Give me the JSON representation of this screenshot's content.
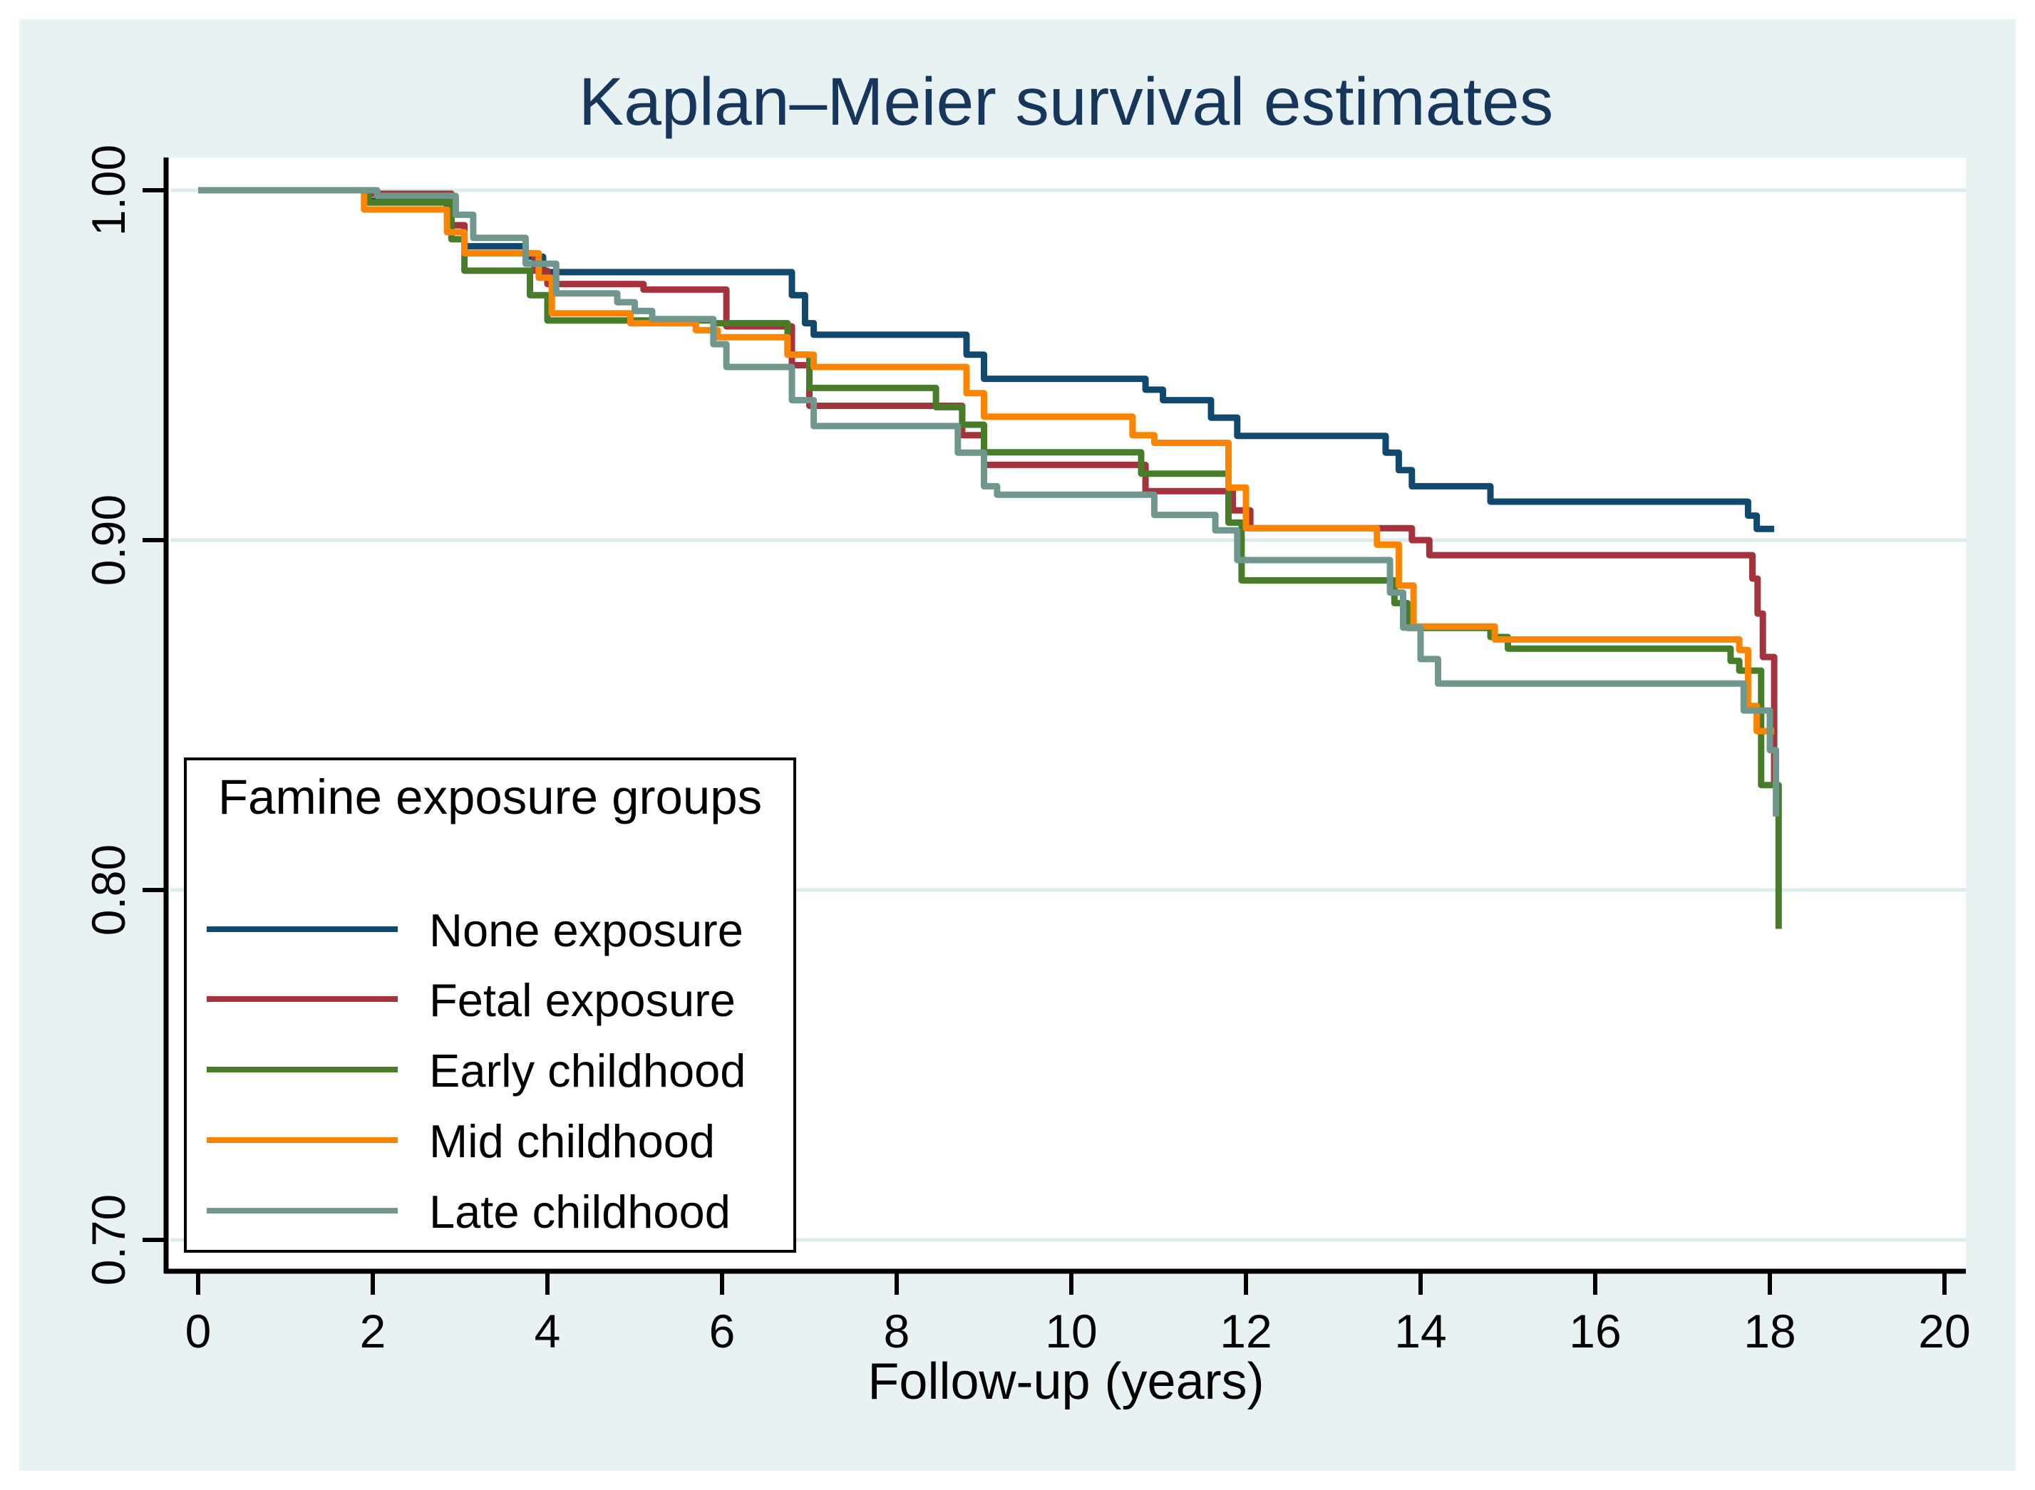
{
  "title": {
    "text": "Kaplan–Meier survival estimates",
    "color": "#16365C"
  },
  "x_axis": {
    "label": "Follow-up (years)",
    "tick_values": [
      0,
      2,
      4,
      6,
      8,
      10,
      12,
      14,
      16,
      18,
      20
    ],
    "range": [
      0,
      20
    ]
  },
  "y_axis": {
    "tick_labels": [
      "1.00",
      "0.90",
      "0.80",
      "0.70"
    ],
    "tick_values": [
      1.0,
      0.9,
      0.8,
      0.7
    ],
    "range": [
      0.7,
      1.0
    ]
  },
  "legend": {
    "title": "Famine exposure groups",
    "position": "bottom-left-inside"
  },
  "colors": {
    "canvas_background": "#E9F2F3",
    "plot_background": "#FFFFFF",
    "gridline": "#DEEBEE",
    "axis": "#000000",
    "title_text": "#16365C"
  },
  "chart_data": {
    "type": "line",
    "subtype": "step-survival",
    "title": "Kaplan–Meier survival estimates",
    "xlabel": "Follow-up (years)",
    "ylabel": "",
    "xlim": [
      0,
      20
    ],
    "ylim_shown": [
      0.7,
      1.0
    ],
    "grid": true,
    "legend_title": "Famine exposure groups",
    "series": [
      {
        "name": "None exposure",
        "color": "#11486E",
        "points": [
          [
            0,
            1.0
          ],
          [
            1.95,
            0.997
          ],
          [
            2.85,
            0.99
          ],
          [
            3.05,
            0.984
          ],
          [
            3.75,
            0.981
          ],
          [
            3.95,
            0.9766
          ],
          [
            6.8,
            0.97
          ],
          [
            6.95,
            0.962
          ],
          [
            7.05,
            0.9587
          ],
          [
            8.8,
            0.953
          ],
          [
            9.0,
            0.9461
          ],
          [
            10.85,
            0.943
          ],
          [
            11.05,
            0.94
          ],
          [
            11.6,
            0.935
          ],
          [
            11.9,
            0.9298
          ],
          [
            13.6,
            0.925
          ],
          [
            13.75,
            0.92
          ],
          [
            13.9,
            0.9154
          ],
          [
            14.8,
            0.911
          ],
          [
            17.75,
            0.907
          ],
          [
            17.85,
            0.9032
          ],
          [
            18.05,
            0.9032
          ]
        ]
      },
      {
        "name": "Fetal exposure",
        "color": "#A4333C",
        "points": [
          [
            0,
            1.0
          ],
          [
            1.95,
            0.999
          ],
          [
            2.9,
            0.99
          ],
          [
            3.05,
            0.982
          ],
          [
            3.85,
            0.977
          ],
          [
            4.0,
            0.9732
          ],
          [
            5.1,
            0.9716
          ],
          [
            6.05,
            0.9611
          ],
          [
            6.8,
            0.95
          ],
          [
            7.0,
            0.9384
          ],
          [
            8.75,
            0.93
          ],
          [
            9.0,
            0.9215
          ],
          [
            10.85,
            0.914
          ],
          [
            11.85,
            0.9085
          ],
          [
            12.05,
            0.9034
          ],
          [
            13.9,
            0.9
          ],
          [
            14.1,
            0.8957
          ],
          [
            17.8,
            0.889
          ],
          [
            17.86,
            0.879
          ],
          [
            17.92,
            0.8666
          ],
          [
            18.05,
            0.8295
          ]
        ]
      },
      {
        "name": "Early childhood",
        "color": "#477C28",
        "points": [
          [
            0,
            1.0
          ],
          [
            1.95,
            0.9965
          ],
          [
            2.9,
            0.986
          ],
          [
            3.05,
            0.977
          ],
          [
            3.8,
            0.97
          ],
          [
            4.0,
            0.9628
          ],
          [
            5.9,
            0.962
          ],
          [
            6.75,
            0.953
          ],
          [
            7.0,
            0.9435
          ],
          [
            8.45,
            0.938
          ],
          [
            8.75,
            0.933
          ],
          [
            9.0,
            0.9251
          ],
          [
            10.8,
            0.919
          ],
          [
            11.8,
            0.905
          ],
          [
            11.95,
            0.8885
          ],
          [
            13.7,
            0.882
          ],
          [
            13.85,
            0.8749
          ],
          [
            14.8,
            0.8723
          ],
          [
            15.0,
            0.869
          ],
          [
            17.55,
            0.8655
          ],
          [
            17.65,
            0.8627
          ],
          [
            17.9,
            0.83
          ],
          [
            18.1,
            0.7889
          ]
        ]
      },
      {
        "name": "Mid childhood",
        "color": "#FB8500",
        "points": [
          [
            0,
            1.0
          ],
          [
            1.9,
            0.9945
          ],
          [
            2.85,
            0.988
          ],
          [
            3.05,
            0.982
          ],
          [
            3.9,
            0.975
          ],
          [
            4.05,
            0.9648
          ],
          [
            4.95,
            0.962
          ],
          [
            5.7,
            0.96
          ],
          [
            5.95,
            0.958
          ],
          [
            6.75,
            0.953
          ],
          [
            7.05,
            0.9495
          ],
          [
            8.8,
            0.942
          ],
          [
            9.0,
            0.9353
          ],
          [
            10.7,
            0.93
          ],
          [
            10.95,
            0.9278
          ],
          [
            11.8,
            0.915
          ],
          [
            12.0,
            0.9034
          ],
          [
            13.5,
            0.8987
          ],
          [
            13.75,
            0.887
          ],
          [
            13.92,
            0.8753
          ],
          [
            14.85,
            0.8716
          ],
          [
            17.65,
            0.8686
          ],
          [
            17.75,
            0.8526
          ],
          [
            17.85,
            0.8454
          ],
          [
            18.05,
            0.8454
          ]
        ]
      },
      {
        "name": "Late childhood",
        "color": "#6F978D",
        "points": [
          [
            0,
            1.0
          ],
          [
            2.05,
            0.9984
          ],
          [
            2.95,
            0.993
          ],
          [
            3.15,
            0.9864
          ],
          [
            3.75,
            0.979
          ],
          [
            4.1,
            0.9705
          ],
          [
            4.8,
            0.968
          ],
          [
            5.0,
            0.9655
          ],
          [
            5.2,
            0.9632
          ],
          [
            5.9,
            0.956
          ],
          [
            6.05,
            0.9495
          ],
          [
            6.8,
            0.94
          ],
          [
            7.05,
            0.9326
          ],
          [
            8.7,
            0.925
          ],
          [
            9.0,
            0.9154
          ],
          [
            9.15,
            0.913
          ],
          [
            10.95,
            0.9072
          ],
          [
            11.65,
            0.9028
          ],
          [
            11.9,
            0.8943
          ],
          [
            13.65,
            0.885
          ],
          [
            13.8,
            0.875
          ],
          [
            14.0,
            0.866
          ],
          [
            14.2,
            0.859
          ],
          [
            17.7,
            0.8513
          ],
          [
            18.0,
            0.84
          ],
          [
            18.07,
            0.821
          ]
        ]
      }
    ]
  }
}
